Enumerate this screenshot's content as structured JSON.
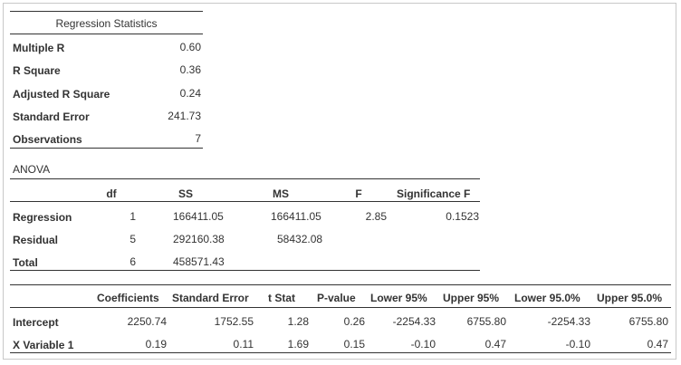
{
  "regression_statistics": {
    "title": "Regression Statistics",
    "rows": [
      {
        "label": "Multiple R",
        "value": "0.60"
      },
      {
        "label": "R Square",
        "value": "0.36"
      },
      {
        "label": "Adjusted R Square",
        "value": "0.24"
      },
      {
        "label": "Standard Error",
        "value": "241.73"
      },
      {
        "label": "Observations",
        "value": "7"
      }
    ]
  },
  "anova": {
    "title": "ANOVA",
    "headers": {
      "df": "df",
      "ss": "SS",
      "ms": "MS",
      "f": "F",
      "sig_f": "Significance F"
    },
    "rows": [
      {
        "label": "Regression",
        "df": "1",
        "ss": "166411.05",
        "ms": "166411.05",
        "f": "2.85",
        "sig_f": "0.1523"
      },
      {
        "label": "Residual",
        "df": "5",
        "ss": "292160.38",
        "ms": "58432.08"
      },
      {
        "label": "Total",
        "df": "6",
        "ss": "458571.43"
      }
    ]
  },
  "coefficients": {
    "headers": {
      "coef": "Coefficients",
      "se": "Standard Error",
      "t": "t Stat",
      "p": "P-value",
      "l95": "Lower 95%",
      "u95": "Upper 95%",
      "l950": "Lower 95.0%",
      "u950": "Upper 95.0%"
    },
    "rows": [
      {
        "label": "Intercept",
        "coef": "2250.74",
        "se": "1752.55",
        "t": "1.28",
        "p": "0.26",
        "l95": "-2254.33",
        "u95": "6755.80",
        "l950": "-2254.33",
        "u950": "6755.80"
      },
      {
        "label": "X Variable 1",
        "coef": "0.19",
        "se": "0.11",
        "t": "1.69",
        "p": "0.15",
        "l95": "-0.10",
        "u95": "0.47",
        "l950": "-0.10",
        "u950": "0.47"
      }
    ]
  }
}
